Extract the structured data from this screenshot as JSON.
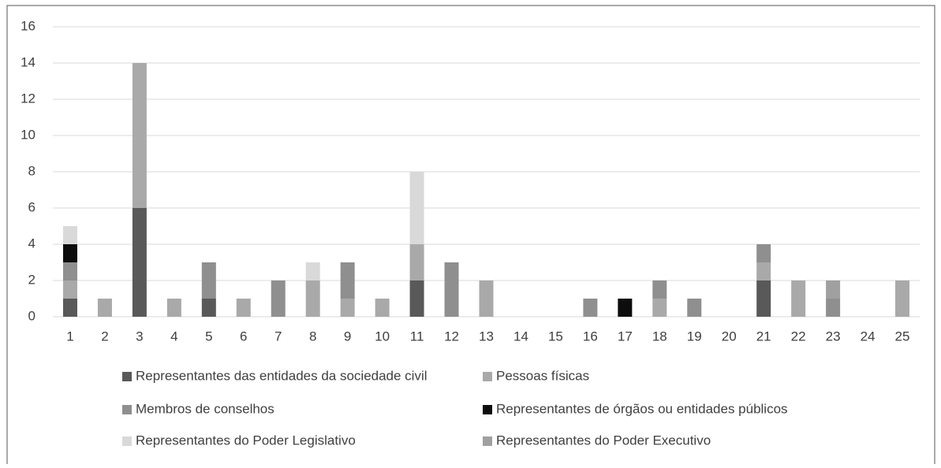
{
  "chart_data": {
    "type": "stacked_bar",
    "categories": [
      "1",
      "2",
      "3",
      "4",
      "5",
      "6",
      "7",
      "8",
      "9",
      "10",
      "11",
      "12",
      "13",
      "14",
      "15",
      "16",
      "17",
      "18",
      "19",
      "20",
      "21",
      "22",
      "23",
      "24",
      "25"
    ],
    "series": [
      {
        "name": "Representantes das entidades da sociedade civil",
        "color": "#595959",
        "values": [
          1,
          0,
          6,
          0,
          1,
          0,
          0,
          0,
          0,
          0,
          2,
          0,
          0,
          0,
          0,
          0,
          0,
          0,
          0,
          0,
          2,
          0,
          0,
          0,
          0
        ]
      },
      {
        "name": "Pessoas físicas",
        "color": "#a9a9a9",
        "values": [
          1,
          1,
          8,
          1,
          0,
          1,
          0,
          2,
          1,
          1,
          2,
          0,
          2,
          0,
          0,
          0,
          0,
          1,
          0,
          0,
          1,
          2,
          0,
          0,
          2
        ]
      },
      {
        "name": "Membros de conselhos",
        "color": "#8f8f8f",
        "values": [
          1,
          0,
          0,
          0,
          2,
          0,
          2,
          0,
          2,
          0,
          0,
          3,
          0,
          0,
          0,
          1,
          0,
          1,
          1,
          0,
          1,
          0,
          1,
          0,
          0
        ]
      },
      {
        "name": "Representantes de órgãos ou entidades públicos",
        "color": "#0d0d0d",
        "values": [
          1,
          0,
          0,
          0,
          0,
          0,
          0,
          0,
          0,
          0,
          0,
          0,
          0,
          0,
          0,
          0,
          1,
          0,
          0,
          0,
          0,
          0,
          0,
          0,
          0
        ]
      },
      {
        "name": "Representantes do Poder Legislativo",
        "color": "#d9d9d9",
        "values": [
          1,
          0,
          0,
          0,
          0,
          0,
          0,
          1,
          0,
          0,
          4,
          0,
          0,
          0,
          0,
          0,
          0,
          0,
          0,
          0,
          0,
          0,
          0,
          0,
          0
        ]
      },
      {
        "name": "Representantes do Poder Executivo",
        "color": "#a0a0a0",
        "values": [
          0,
          0,
          0,
          0,
          0,
          0,
          0,
          0,
          0,
          0,
          0,
          0,
          0,
          0,
          0,
          0,
          0,
          0,
          0,
          0,
          0,
          0,
          1,
          0,
          0
        ]
      }
    ],
    "ylim": [
      0,
      16
    ],
    "yticks": [
      0,
      2,
      4,
      6,
      8,
      10,
      12,
      14,
      16
    ],
    "grid": true
  }
}
